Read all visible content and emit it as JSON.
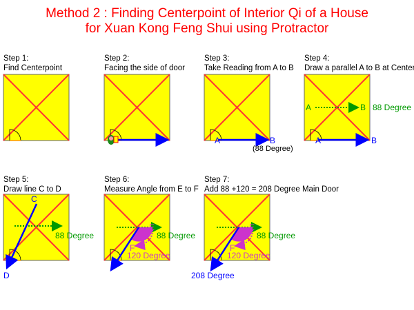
{
  "title": {
    "line1": "Method 2 : Finding Centerpoint of Interior Qi of a House",
    "line2": "for Xuan Kong Feng Shui using Protractor"
  },
  "colors": {
    "house": "#ffff00",
    "diagonals": "#ff3333",
    "reading": "#0000ff",
    "parallel": "#009900",
    "angle": "#cc33cc",
    "title": "#ff0000"
  },
  "steps": [
    {
      "step": "Step 1:",
      "caption": "Find Centerpoint"
    },
    {
      "step": "Step 2:",
      "caption": "Facing the side of door"
    },
    {
      "step": "Step 3:",
      "caption": "Take Reading from A to B",
      "a": "A",
      "b": "B",
      "reading": "(88 Degree)"
    },
    {
      "step": "Step 4:",
      "caption": "Draw a parallel A to B at Center",
      "a": "A",
      "b": "B",
      "a2": "A",
      "b2": "B",
      "degree": "88 Degree"
    },
    {
      "step": "Step 5:",
      "caption": "Draw line C to D",
      "c": "C",
      "d": "D",
      "degree": "88 Degree"
    },
    {
      "step": "Step 6:",
      "caption": "Measure Angle from E to F",
      "e": "E",
      "f": "F",
      "degree": "88 Degree",
      "angle": "120 Degree"
    },
    {
      "step": "Step 7:",
      "caption": "Add 88 +120 = 208 Degree Main Door",
      "e": "E",
      "f": "F",
      "degree": "88 Degree",
      "angle": "120 Degree",
      "result": "208 Degree"
    }
  ]
}
